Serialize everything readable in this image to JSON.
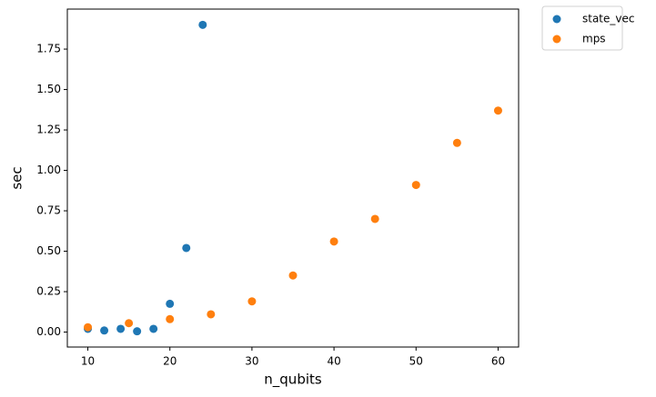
{
  "chart_data": {
    "type": "scatter",
    "x_label": "n_qubits",
    "y_label": "sec",
    "xlim": [
      7.5,
      62.5
    ],
    "xticks": [
      10,
      20,
      30,
      40,
      50,
      60
    ],
    "ylim": [
      -0.0925,
      1.9975
    ],
    "yticks": [
      {
        "value": 0,
        "label": "0.00"
      },
      {
        "value": 0.25,
        "label": "0.25"
      },
      {
        "value": 0.5,
        "label": "0.50"
      },
      {
        "value": 0.75,
        "label": "0.75"
      },
      {
        "value": 1,
        "label": "1.00"
      },
      {
        "value": 1.25,
        "label": "1.25"
      },
      {
        "value": 1.5,
        "label": "1.50"
      },
      {
        "value": 1.75,
        "label": "1.75"
      }
    ],
    "legend": "outside-upper-right",
    "series": [
      {
        "name": "state_vec",
        "color": "#1f77b4",
        "x": [
          10,
          12,
          14,
          16,
          18,
          20,
          22,
          24
        ],
        "values": [
          0.02,
          0.01,
          0.02,
          0.005,
          0.02,
          0.175,
          0.52,
          1.9
        ]
      },
      {
        "name": "mps",
        "color": "#ff7f0e",
        "x": [
          10,
          15,
          20,
          25,
          30,
          35,
          40,
          45,
          50,
          55,
          60
        ],
        "values": [
          0.03,
          0.055,
          0.08,
          0.11,
          0.19,
          0.35,
          0.56,
          0.7,
          0.91,
          1.17,
          1.37
        ]
      }
    ]
  }
}
